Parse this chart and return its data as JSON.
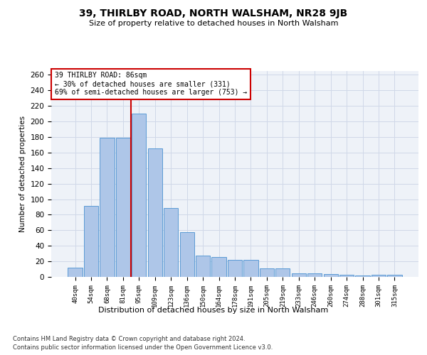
{
  "title": "39, THIRLBY ROAD, NORTH WALSHAM, NR28 9JB",
  "subtitle": "Size of property relative to detached houses in North Walsham",
  "xlabel": "Distribution of detached houses by size in North Walsham",
  "ylabel": "Number of detached properties",
  "categories": [
    "40sqm",
    "54sqm",
    "68sqm",
    "81sqm",
    "95sqm",
    "109sqm",
    "123sqm",
    "136sqm",
    "150sqm",
    "164sqm",
    "178sqm",
    "191sqm",
    "205sqm",
    "219sqm",
    "233sqm",
    "246sqm",
    "260sqm",
    "274sqm",
    "288sqm",
    "301sqm",
    "315sqm"
  ],
  "values": [
    12,
    91,
    179,
    179,
    210,
    165,
    89,
    58,
    27,
    26,
    22,
    22,
    11,
    11,
    5,
    5,
    4,
    3,
    2,
    3,
    3
  ],
  "bar_color": "#aec6e8",
  "bar_edge_color": "#5b9bd5",
  "grid_color": "#d0d8e8",
  "background_color": "#eef2f8",
  "vline_color": "#cc0000",
  "annotation_text": "39 THIRLBY ROAD: 86sqm\n← 30% of detached houses are smaller (331)\n69% of semi-detached houses are larger (753) →",
  "annotation_box_color": "#ffffff",
  "annotation_box_edge": "#cc0000",
  "ylim": [
    0,
    265
  ],
  "yticks": [
    0,
    20,
    40,
    60,
    80,
    100,
    120,
    140,
    160,
    180,
    200,
    220,
    240,
    260
  ],
  "footer_line1": "Contains HM Land Registry data © Crown copyright and database right 2024.",
  "footer_line2": "Contains public sector information licensed under the Open Government Licence v3.0."
}
